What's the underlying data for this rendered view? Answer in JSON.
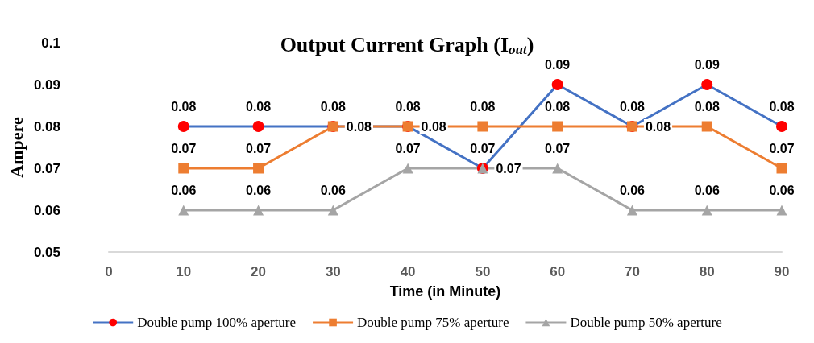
{
  "chart_data": {
    "type": "line",
    "title": "Output Current Graph (I$_{out}$)",
    "xlabel": "Time (in Minute)",
    "ylabel": "Ampere",
    "categories": [
      "0",
      "10",
      "20",
      "30",
      "40",
      "50",
      "60",
      "70",
      "80",
      "90"
    ],
    "series": [
      {
        "name": "Double pump 100% aperture",
        "color": "#4472c4",
        "colors": [
          null,
          "#ff0000",
          "#ff0000",
          "#ff0000",
          "#ff0000",
          "#ff0000",
          "#ff0000",
          "#ff0000",
          "#ff0000",
          "#ff0000"
        ],
        "marker": "circle",
        "values": [
          null,
          0.08,
          0.08,
          0.08,
          0.08,
          0.07,
          0.09,
          0.08,
          0.09,
          0.08
        ]
      },
      {
        "name": "Double pump 75% aperture",
        "color": "#ed7d31",
        "marker": "square",
        "values": [
          null,
          0.07,
          0.07,
          0.08,
          0.08,
          0.08,
          0.08,
          0.08,
          0.08,
          0.07
        ]
      },
      {
        "name": "Double pump 50% aperture",
        "color": "#a5a5a5",
        "marker": "triangle",
        "values": [
          null,
          0.06,
          0.06,
          0.06,
          0.07,
          0.07,
          0.07,
          0.06,
          0.06,
          0.06
        ]
      }
    ],
    "ylim": [
      0.05,
      0.1
    ],
    "yticks": [
      0.05,
      0.06,
      0.07,
      0.08,
      0.09,
      0.1
    ],
    "grid": false,
    "legend": "bottom",
    "data_labels": true,
    "line_style": "solid"
  }
}
